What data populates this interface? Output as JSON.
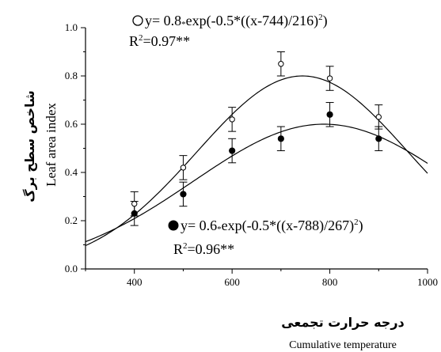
{
  "chart_data": {
    "type": "scatter",
    "title": "",
    "xlabel_fa": "درجه حرارت تجمعی",
    "xlabel": "Cumulative temperature",
    "ylabel_fa": "شاخص سطح برگ",
    "ylabel": "Leaf area index",
    "xlim": [
      300,
      1000
    ],
    "ylim": [
      0,
      1.0
    ],
    "x_ticks": [
      "400",
      "600",
      "800",
      "1000"
    ],
    "y_ticks": [
      "0.0",
      "0.2",
      "0.4",
      "0.6",
      "0.8",
      "1.0"
    ],
    "grid": false,
    "series": [
      {
        "marker": "open-circle",
        "x": [
          400,
          500,
          600,
          700,
          800,
          900
        ],
        "y": [
          0.27,
          0.42,
          0.62,
          0.85,
          0.79,
          0.63
        ],
        "err": [
          0.05,
          0.05,
          0.05,
          0.05,
          0.05,
          0.05
        ],
        "fit": {
          "a": 0.8,
          "x0": 744,
          "b": 216
        },
        "equation": "y= 0.8*exp(-0.5*((x-744)/216)2)",
        "eq_prefix": "y= 0.8",
        "eq_mult": "*",
        "eq_body": "exp(-0.5*((x-744)/216)",
        "eq_exp": "2",
        "eq_close": ")",
        "r2_label": "R",
        "r2_sup": "2",
        "r2_value": "=0.97**"
      },
      {
        "marker": "filled-circle",
        "x": [
          400,
          500,
          600,
          700,
          800,
          900
        ],
        "y": [
          0.23,
          0.31,
          0.49,
          0.54,
          0.64,
          0.54
        ],
        "err": [
          0.05,
          0.05,
          0.05,
          0.05,
          0.05,
          0.05
        ],
        "fit": {
          "a": 0.6,
          "x0": 788,
          "b": 267
        },
        "equation": "y= 0.6*exp(-0.5*((x-788)/267)2)",
        "eq_prefix": "y= 0.6",
        "eq_mult": "*",
        "eq_body": "exp(-0.5*((x-788)/267)",
        "eq_exp": "2",
        "eq_close": ")",
        "r2_label": "R",
        "r2_sup": "2",
        "r2_value": "=0.96**"
      }
    ]
  }
}
